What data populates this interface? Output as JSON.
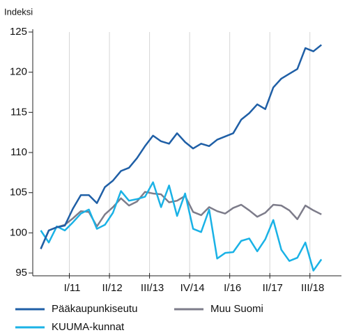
{
  "chart_data": {
    "type": "line",
    "y_label": "Indeksi",
    "x": [
      0,
      1,
      2,
      3,
      4,
      5,
      6,
      7,
      8,
      9,
      10,
      11,
      12,
      13,
      14,
      15,
      16,
      17,
      18,
      19,
      20,
      21,
      22,
      23,
      24,
      25,
      26,
      27,
      28,
      29,
      30,
      31,
      32,
      33,
      34,
      35
    ],
    "xlim": [
      -1,
      37.5
    ],
    "xticks": [
      {
        "value": 4,
        "label": "I/11"
      },
      {
        "value": 9,
        "label": "II/12"
      },
      {
        "value": 14,
        "label": "III/13"
      },
      {
        "value": 19,
        "label": "IV/14"
      },
      {
        "value": 24,
        "label": "I/16"
      },
      {
        "value": 29,
        "label": "II/17"
      },
      {
        "value": 34,
        "label": "III/18"
      }
    ],
    "ylim": [
      95,
      125
    ],
    "yticks": [
      95,
      100,
      105,
      110,
      115,
      120,
      125
    ],
    "grid": true,
    "series": [
      {
        "name": "Pääkaupunkiseutu",
        "color": "#1f5fa6",
        "values": [
          98,
          100.3,
          100.7,
          100.9,
          103,
          104.7,
          104.7,
          103.7,
          105.7,
          106.5,
          107.7,
          108.1,
          109.3,
          110.8,
          112.1,
          111.4,
          111.1,
          112.4,
          111.3,
          110.5,
          111.1,
          110.8,
          111.6,
          112,
          112.4,
          114.1,
          114.9,
          116,
          115.4,
          118.1,
          119.2,
          119.8,
          120.4,
          123,
          122.6,
          123.4
        ]
      },
      {
        "name": "Muu Suomi",
        "color": "#7d7c8a",
        "values": [
          98,
          100.3,
          100.7,
          101,
          101.8,
          102.7,
          102.6,
          100.8,
          102.3,
          103.2,
          104.3,
          103.4,
          103.9,
          105.1,
          104.9,
          104.8,
          103.8,
          104,
          104.6,
          102.6,
          102.2,
          103.2,
          102.7,
          102.4,
          103.1,
          103.5,
          102.8,
          102,
          102.5,
          103.5,
          103.4,
          102.8,
          101.7,
          103.4,
          102.8,
          102.3
        ]
      },
      {
        "name": "KUUMA-kunnat",
        "color": "#1ab2e6",
        "values": [
          100.3,
          98.8,
          100.8,
          100.3,
          101.3,
          102.4,
          102.9,
          100.5,
          101,
          102.5,
          105.2,
          104,
          104.2,
          104.5,
          106.3,
          103.2,
          105.9,
          102.1,
          104.9,
          100.5,
          100.1,
          102.9,
          96.8,
          97.5,
          97.6,
          99,
          99.3,
          97.7,
          99.2,
          101.6,
          97.9,
          96.5,
          96.9,
          98.8,
          95.3,
          96.7
        ]
      }
    ]
  }
}
